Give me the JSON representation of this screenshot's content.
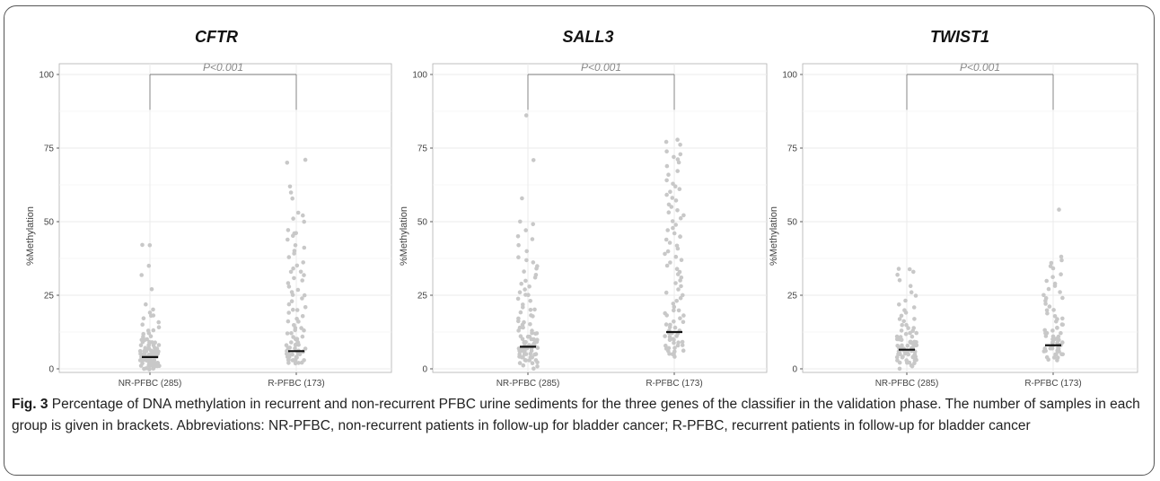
{
  "caption": {
    "label": "Fig. 3",
    "text": "Percentage of DNA methylation in recurrent and non-recurrent PFBC urine sediments for the three genes of the classifier in the validation phase. The number of samples in each group is given in brackets. Abbreviations: NR-PFBC, non-recurrent patients in follow-up for bladder cancer; R-PFBC, recurrent patients in follow-up for bladder cancer"
  },
  "colors": {
    "points": "#c8c8c8",
    "median": "#111111",
    "bracket": "#7a7a7a",
    "grid": "#ebebeb",
    "panel_border": "#b0b0b0"
  },
  "chart_data": [
    {
      "type": "scatter",
      "title": "CFTR",
      "ylabel": "%Methylation",
      "categories": [
        "NR-PFBC (285)",
        "R-PFBC (173)"
      ],
      "ylim": [
        0,
        100
      ],
      "yticks": [
        0,
        25,
        50,
        75,
        100
      ],
      "grid": true,
      "annotation": "P<0.001",
      "bracket_y": 88,
      "series": [
        {
          "category": "NR-PFBC (285)",
          "median": 4,
          "values": [
            42,
            42,
            35,
            32,
            27,
            22,
            20,
            19,
            18,
            18,
            17,
            16,
            15,
            14,
            13,
            13,
            12,
            12,
            11,
            11,
            10,
            10,
            10,
            9,
            9,
            9,
            9,
            8,
            8,
            8,
            8,
            8,
            7,
            7,
            7,
            7,
            7,
            7,
            6,
            6,
            6,
            6,
            6,
            6,
            6,
            6,
            5,
            5,
            5,
            5,
            5,
            5,
            5,
            5,
            5,
            5,
            4,
            4,
            4,
            4,
            4,
            4,
            4,
            4,
            4,
            4,
            4,
            4,
            3,
            3,
            3,
            3,
            3,
            3,
            3,
            3,
            3,
            3,
            3,
            3,
            2,
            2,
            2,
            2,
            2,
            2,
            2,
            2,
            2,
            2,
            1,
            1,
            1,
            1,
            1,
            1,
            1,
            0,
            0,
            0,
            0,
            0
          ]
        },
        {
          "category": "R-PFBC (173)",
          "median": 6,
          "values": [
            71,
            70,
            62,
            60,
            58,
            53,
            52,
            51,
            50,
            47,
            46,
            46,
            45,
            44,
            42,
            41,
            40,
            39,
            38,
            36,
            35,
            34,
            33,
            33,
            32,
            31,
            30,
            29,
            28,
            27,
            26,
            25,
            25,
            24,
            23,
            22,
            21,
            20,
            20,
            19,
            18,
            17,
            16,
            16,
            15,
            14,
            14,
            13,
            13,
            12,
            12,
            11,
            11,
            10,
            10,
            10,
            9,
            9,
            9,
            8,
            8,
            8,
            8,
            7,
            7,
            7,
            7,
            6,
            6,
            6,
            6,
            6,
            5,
            5,
            5,
            5,
            5,
            5,
            4,
            4,
            4,
            4,
            4,
            4,
            3,
            3,
            3,
            3,
            3,
            3,
            2,
            2,
            2,
            2,
            2
          ]
        }
      ]
    },
    {
      "type": "scatter",
      "title": "SALL3",
      "ylabel": "%Methylation",
      "categories": [
        "NR-PFBC (285)",
        "R-PFBC (173)"
      ],
      "ylim": [
        0,
        100
      ],
      "yticks": [
        0,
        25,
        50,
        75,
        100
      ],
      "grid": true,
      "annotation": "P<0.001",
      "bracket_y": 88,
      "series": [
        {
          "category": "NR-PFBC (285)",
          "median": 7.5,
          "values": [
            86,
            71,
            58,
            50,
            49,
            47,
            45,
            44,
            42,
            40,
            38,
            37,
            36,
            35,
            34,
            33,
            32,
            31,
            30,
            29,
            28,
            27,
            26,
            25,
            25,
            24,
            23,
            22,
            21,
            20,
            20,
            19,
            18,
            18,
            17,
            16,
            16,
            15,
            15,
            14,
            14,
            13,
            13,
            12,
            12,
            12,
            11,
            11,
            11,
            10,
            10,
            10,
            10,
            9,
            9,
            9,
            9,
            9,
            8,
            8,
            8,
            8,
            8,
            8,
            7,
            7,
            7,
            7,
            7,
            7,
            7,
            6,
            6,
            6,
            6,
            6,
            6,
            5,
            5,
            5,
            5,
            5,
            5,
            4,
            4,
            4,
            4,
            4,
            3,
            3,
            3,
            3,
            2,
            2,
            2,
            1,
            1,
            0
          ]
        },
        {
          "category": "R-PFBC (173)",
          "median": 12.5,
          "values": [
            78,
            77,
            76,
            74,
            73,
            72,
            71,
            70,
            69,
            67,
            66,
            64,
            63,
            62,
            61,
            60,
            59,
            58,
            57,
            56,
            55,
            54,
            53,
            52,
            51,
            50,
            49,
            48,
            47,
            46,
            45,
            45,
            44,
            43,
            42,
            41,
            40,
            39,
            38,
            37,
            36,
            35,
            34,
            33,
            32,
            31,
            30,
            29,
            28,
            27,
            26,
            25,
            24,
            23,
            22,
            21,
            20,
            20,
            19,
            18,
            18,
            17,
            16,
            16,
            15,
            15,
            14,
            14,
            13,
            13,
            12,
            12,
            12,
            11,
            11,
            11,
            10,
            10,
            10,
            9,
            9,
            9,
            8,
            8,
            8,
            7,
            7,
            7,
            6,
            6,
            6,
            5,
            5,
            5,
            4
          ]
        }
      ]
    },
    {
      "type": "scatter",
      "title": "TWIST1",
      "ylabel": "%Methylation",
      "categories": [
        "NR-PFBC (285)",
        "R-PFBC (173)"
      ],
      "ylim": [
        0,
        100
      ],
      "yticks": [
        0,
        25,
        50,
        75,
        100
      ],
      "grid": true,
      "annotation": "P<0.001",
      "bracket_y": 88,
      "series": [
        {
          "category": "NR-PFBC (285)",
          "median": 6.5,
          "values": [
            34,
            34,
            33,
            32,
            30,
            28,
            26,
            25,
            23,
            22,
            21,
            20,
            19,
            18,
            17,
            17,
            16,
            15,
            15,
            14,
            14,
            13,
            13,
            12,
            12,
            12,
            11,
            11,
            11,
            10,
            10,
            10,
            10,
            9,
            9,
            9,
            9,
            9,
            8,
            8,
            8,
            8,
            8,
            8,
            7,
            7,
            7,
            7,
            7,
            7,
            7,
            6,
            6,
            6,
            6,
            6,
            6,
            6,
            5,
            5,
            5,
            5,
            5,
            5,
            4,
            4,
            4,
            4,
            4,
            4,
            3,
            3,
            3,
            3,
            3,
            2,
            2,
            2,
            2,
            1,
            1,
            1,
            0
          ]
        },
        {
          "category": "R-PFBC (173)",
          "median": 8,
          "values": [
            54,
            38,
            37,
            36,
            35,
            34,
            32,
            31,
            30,
            29,
            28,
            27,
            26,
            25,
            24,
            24,
            23,
            22,
            21,
            20,
            20,
            19,
            18,
            17,
            17,
            16,
            15,
            15,
            14,
            14,
            13,
            13,
            12,
            12,
            12,
            11,
            11,
            11,
            10,
            10,
            10,
            10,
            9,
            9,
            9,
            9,
            8,
            8,
            8,
            8,
            8,
            7,
            7,
            7,
            7,
            7,
            6,
            6,
            6,
            6,
            6,
            5,
            5,
            5,
            5,
            4,
            4,
            4,
            3,
            3
          ]
        }
      ]
    }
  ]
}
